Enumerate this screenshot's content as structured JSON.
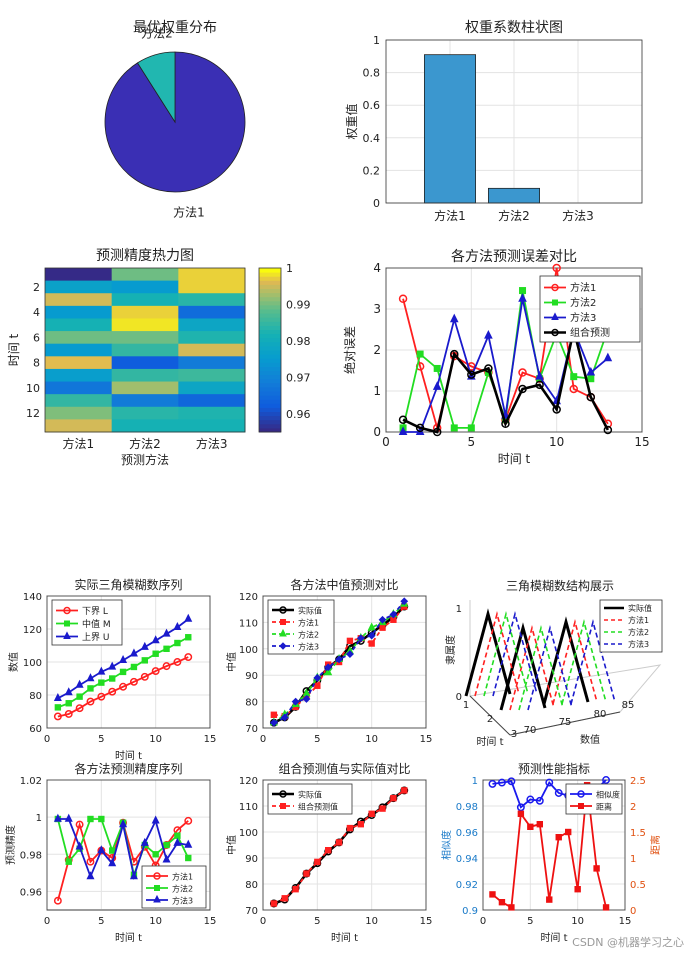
{
  "watermark": "CSDN @机器学习之心",
  "chart_data": [
    {
      "id": "pie",
      "type": "pie",
      "title": "最优权重分布",
      "labels": [
        "方法1",
        "方法2"
      ],
      "values": [
        0.91,
        0.09
      ],
      "colors": [
        "#3a2fb4",
        "#21b7b0"
      ]
    },
    {
      "id": "bar",
      "type": "bar",
      "title": "权重系数柱状图",
      "ylabel": "权重值",
      "categories": [
        "方法1",
        "方法2",
        "方法3"
      ],
      "values": [
        0.91,
        0.09,
        0
      ],
      "ylim": [
        0,
        1
      ],
      "yticks": [
        0,
        0.2,
        0.4,
        0.6,
        0.8,
        1
      ],
      "color": "#3b97cf",
      "grid": true
    },
    {
      "id": "heat",
      "type": "heatmap",
      "title": "预测精度热力图",
      "xlabel": "预测方法",
      "ylabel": "时间 t",
      "categories": [
        "方法1",
        "方法2",
        "方法3"
      ],
      "yticks": [
        2,
        4,
        6,
        8,
        10,
        12
      ],
      "clim": [
        0.955,
        1
      ],
      "cticks": [
        "0.96",
        "0.97",
        "0.98",
        "0.99",
        "1"
      ],
      "values": [
        [
          0.955,
          0.99,
          0.998
        ],
        [
          0.977,
          0.975,
          0.998
        ],
        [
          0.996,
          0.982,
          0.984
        ],
        [
          0.975,
          0.998,
          0.965
        ],
        [
          0.982,
          0.999,
          0.978
        ],
        [
          0.99,
          0.99,
          0.983
        ],
        [
          0.975,
          0.985,
          0.996
        ],
        [
          0.997,
          0.962,
          0.968
        ],
        [
          0.976,
          0.985,
          0.986
        ],
        [
          0.967,
          0.993,
          0.978
        ],
        [
          0.985,
          0.968,
          0.964
        ],
        [
          0.991,
          0.984,
          0.983
        ],
        [
          0.996,
          0.982,
          0.982
        ]
      ]
    },
    {
      "id": "err",
      "type": "line",
      "title": "各方法预测误差对比",
      "xlabel": "时间 t",
      "ylabel": "绝对误差",
      "xlim": [
        0,
        15
      ],
      "ylim": [
        0,
        4
      ],
      "xticks": [
        0,
        5,
        10,
        15
      ],
      "yticks": [
        0,
        1,
        2,
        3,
        4
      ],
      "legend": "top-right",
      "grid": true,
      "x": [
        1,
        2,
        3,
        4,
        5,
        6,
        7,
        8,
        9,
        10,
        11,
        12,
        13
      ],
      "series": [
        {
          "name": "方法1",
          "color": "#ff2020",
          "marker": "circle",
          "values": [
            3.25,
            1.6,
            0.1,
            1.85,
            1.6,
            1.45,
            0.3,
            1.45,
            1.3,
            4.0,
            1.05,
            0.85,
            0.2
          ]
        },
        {
          "name": "方法2",
          "color": "#22dd22",
          "marker": "square",
          "values": [
            0.1,
            1.9,
            1.55,
            0.1,
            0.1,
            1.45,
            0.3,
            3.45,
            1.3,
            2.4,
            1.35,
            1.3,
            2.5
          ]
        },
        {
          "name": "方法3",
          "color": "#1a1acc",
          "marker": "triangle",
          "values": [
            0.0,
            0.0,
            1.1,
            2.75,
            1.35,
            2.35,
            0.4,
            3.25,
            1.35,
            0.75,
            2.5,
            1.45,
            1.8
          ]
        },
        {
          "name": "组合预测",
          "color": "#000000",
          "marker": "circle",
          "values": [
            0.3,
            0.1,
            0.0,
            1.9,
            1.4,
            1.55,
            0.2,
            1.05,
            1.15,
            0.55,
            2.5,
            0.85,
            0.05
          ]
        }
      ]
    },
    {
      "id": "tri",
      "type": "line",
      "title": "实际三角模糊数序列",
      "xlabel": "时间 t",
      "ylabel": "数值",
      "xlim": [
        0,
        15
      ],
      "ylim": [
        60,
        140
      ],
      "xticks": [
        0,
        5,
        10,
        15
      ],
      "yticks": [
        60,
        80,
        100,
        120,
        140
      ],
      "legend": "top-left",
      "grid": true,
      "x": [
        1,
        2,
        3,
        4,
        5,
        6,
        7,
        8,
        9,
        10,
        11,
        12,
        13
      ],
      "series": [
        {
          "name": "下界 L",
          "color": "#ff2020",
          "marker": "circle",
          "values": [
            67,
            68.5,
            72,
            76,
            79,
            82,
            85,
            88,
            91,
            94.5,
            97.5,
            100,
            103
          ]
        },
        {
          "name": "中值 M",
          "color": "#22dd22",
          "marker": "square",
          "values": [
            72.5,
            75,
            79,
            84,
            87.5,
            90,
            94,
            97,
            101,
            105,
            108,
            111.5,
            115
          ]
        },
        {
          "name": "上界 U",
          "color": "#1a1acc",
          "marker": "triangle",
          "values": [
            78,
            81.5,
            86,
            90,
            94,
            97,
            101,
            105,
            109,
            113,
            117,
            121,
            126
          ]
        }
      ]
    },
    {
      "id": "mid",
      "type": "line",
      "title": "各方法中值预测对比",
      "ylabel": "中值",
      "xlim": [
        0,
        15
      ],
      "ylim": [
        70,
        120
      ],
      "xticks": [
        0,
        5,
        10,
        15
      ],
      "yticks": [
        70,
        80,
        90,
        100,
        110,
        120
      ],
      "legend": "top-left",
      "grid": true,
      "x": [
        1,
        2,
        3,
        4,
        5,
        6,
        7,
        8,
        9,
        10,
        11,
        12,
        13
      ],
      "series": [
        {
          "name": "实际值",
          "color": "#000000",
          "marker": "circle",
          "values": [
            72,
            74,
            78,
            84,
            88,
            93,
            96,
            101,
            103,
            106,
            109,
            112,
            116
          ]
        },
        {
          "name": "方法1",
          "color": "#ff2020",
          "marker": "square",
          "values": [
            75,
            74.5,
            78,
            82,
            86,
            94,
            95,
            103,
            104,
            102,
            108,
            111,
            116
          ]
        },
        {
          "name": "方法2",
          "color": "#22dd22",
          "marker": "triangle",
          "values": [
            72,
            75,
            79,
            83,
            89,
            91,
            96,
            99,
            104,
            108,
            110,
            113,
            117
          ]
        },
        {
          "name": "方法3",
          "color": "#1a1acc",
          "marker": "diamond",
          "values": [
            72,
            74,
            80,
            81,
            89,
            93,
            96,
            98,
            104,
            105,
            111,
            113,
            118
          ]
        }
      ]
    },
    {
      "id": "struct",
      "type": "line",
      "title": "三角模糊数结构展示",
      "xlabel": "时间 t",
      "ylabel": "数值",
      "zlabel": "隶属度",
      "xticks": [
        "1",
        "2",
        "3"
      ],
      "yticks": [
        "70",
        "75",
        "80",
        "85"
      ],
      "zticks": [
        "0",
        "1"
      ],
      "legend": "top-right",
      "series": [
        {
          "name": "实际值",
          "color": "#000000"
        },
        {
          "name": "方法1",
          "color": "#ff2020"
        },
        {
          "name": "方法2",
          "color": "#22dd22"
        },
        {
          "name": "方法3",
          "color": "#1a1acc"
        }
      ]
    },
    {
      "id": "acc",
      "type": "line",
      "title": "各方法预测精度序列",
      "xlabel": "时间 t",
      "ylabel": "预测精度",
      "xlim": [
        0,
        15
      ],
      "ylim": [
        0.95,
        1.02
      ],
      "xticks": [
        0,
        5,
        10,
        15
      ],
      "yticks": [
        0.96,
        0.98,
        1,
        1.02
      ],
      "legend": "bottom-right",
      "grid": true,
      "x": [
        1,
        2,
        3,
        4,
        5,
        6,
        7,
        8,
        9,
        10,
        11,
        12,
        13
      ],
      "series": [
        {
          "name": "方法1",
          "color": "#ff2020",
          "marker": "circle",
          "values": [
            0.955,
            0.977,
            0.996,
            0.976,
            0.982,
            0.978,
            0.997,
            0.976,
            0.984,
            0.974,
            0.985,
            0.993,
            0.998
          ]
        },
        {
          "name": "方法2",
          "color": "#22dd22",
          "marker": "square",
          "values": [
            0.999,
            0.976,
            0.983,
            0.999,
            0.999,
            0.982,
            0.997,
            0.969,
            0.985,
            0.98,
            0.985,
            0.99,
            0.978
          ]
        },
        {
          "name": "方法3",
          "color": "#1a1acc",
          "marker": "triangle",
          "values": [
            0.999,
            0.999,
            0.984,
            0.968,
            0.982,
            0.975,
            0.996,
            0.968,
            0.986,
            0.998,
            0.977,
            0.986,
            0.985
          ]
        }
      ]
    },
    {
      "id": "comb",
      "type": "line",
      "title": "组合预测值与实际值对比",
      "xlabel": "时间 t",
      "ylabel": "中值",
      "xlim": [
        0,
        15
      ],
      "ylim": [
        70,
        120
      ],
      "xticks": [
        0,
        5,
        10,
        15
      ],
      "yticks": [
        70,
        80,
        90,
        100,
        110,
        120
      ],
      "legend": "top-left",
      "grid": true,
      "x": [
        1,
        2,
        3,
        4,
        5,
        6,
        7,
        8,
        9,
        10,
        11,
        12,
        13
      ],
      "series": [
        {
          "name": "实际值",
          "color": "#000000",
          "marker": "circle",
          "values": [
            72.5,
            74,
            78.5,
            84,
            88,
            92.5,
            96,
            101,
            104,
            106.5,
            109.5,
            113,
            116
          ]
        },
        {
          "name": "组合预测值",
          "color": "#ff2020",
          "marker": "square",
          "values": [
            72.5,
            74.5,
            78,
            84,
            88.5,
            93,
            96,
            101.5,
            103,
            107,
            109,
            113,
            116
          ]
        }
      ]
    },
    {
      "id": "perf",
      "type": "line",
      "title": "预测性能指标",
      "xlabel": "时间 t",
      "ylabel": "相似度",
      "y2label": "距离",
      "xlim": [
        0,
        15
      ],
      "ylim": [
        0.9,
        1
      ],
      "y2lim": [
        0,
        2.5
      ],
      "xticks": [
        0,
        5,
        10,
        15
      ],
      "yticks": [
        0.9,
        0.92,
        0.94,
        0.96,
        0.98,
        1
      ],
      "y2ticks": [
        0,
        0.5,
        1,
        1.5,
        2,
        2.5
      ],
      "legend": "top-right",
      "grid": true,
      "x": [
        1,
        2,
        3,
        4,
        5,
        6,
        7,
        8,
        9,
        10,
        11,
        12,
        13
      ],
      "series": [
        {
          "name": "相似度",
          "axis": "left",
          "color": "#1a1aee",
          "marker": "circle",
          "values": [
            0.997,
            0.998,
            0.999,
            0.979,
            0.985,
            0.984,
            0.998,
            0.99,
            0.988,
            0.993,
            0.981,
            0.993,
            1.0
          ]
        },
        {
          "name": "距离",
          "axis": "right",
          "color": "#ee1111",
          "marker": "square",
          "values": [
            0.3,
            0.15,
            0.05,
            1.85,
            1.6,
            1.65,
            0.2,
            1.4,
            1.5,
            0.4,
            2.4,
            0.8,
            0.05
          ]
        }
      ]
    }
  ]
}
